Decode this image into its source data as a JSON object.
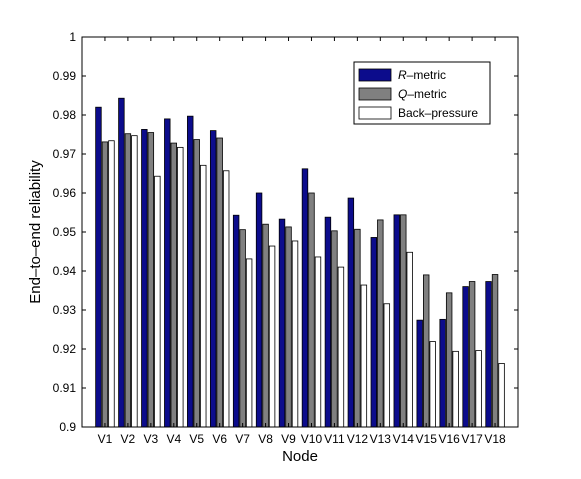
{
  "chart_data": {
    "type": "bar",
    "xlabel": "Node",
    "ylabel": "End–to–end reliability",
    "ylim": [
      0.9,
      1.0
    ],
    "yticks": [
      "0.9",
      "0.91",
      "0.92",
      "0.93",
      "0.94",
      "0.95",
      "0.96",
      "0.97",
      "0.98",
      "0.99",
      "1"
    ],
    "categories": [
      "V1",
      "V2",
      "V3",
      "V4",
      "V5",
      "V6",
      "V7",
      "V8",
      "V9",
      "V10",
      "V11",
      "V12",
      "V13",
      "V14",
      "V15",
      "V16",
      "V17",
      "V18"
    ],
    "legend_position": "top-right",
    "grid": false,
    "series": [
      {
        "name": "R–metric",
        "name_prefix": "R",
        "name_suffix": "–metric",
        "color": "#0c0c8c",
        "values": [
          0.982,
          0.9843,
          0.9763,
          0.979,
          0.9797,
          0.976,
          0.9543,
          0.96,
          0.9533,
          0.9662,
          0.9538,
          0.9587,
          0.9486,
          0.9544,
          0.9274,
          0.9276,
          0.936,
          0.9373
        ]
      },
      {
        "name": "Q–metric",
        "name_prefix": "Q",
        "name_suffix": "–metric",
        "color": "#808080",
        "values": [
          0.9731,
          0.9752,
          0.9755,
          0.9728,
          0.9737,
          0.9741,
          0.9506,
          0.952,
          0.9513,
          0.96,
          0.9503,
          0.9507,
          0.9531,
          0.9544,
          0.939,
          0.9344,
          0.9373,
          0.9391
        ]
      },
      {
        "name": "Back–pressure",
        "name_prefix": "",
        "name_suffix": "Back–pressure",
        "color": "#ffffff",
        "values": [
          0.9734,
          0.9747,
          0.9643,
          0.9717,
          0.9671,
          0.9657,
          0.9431,
          0.9464,
          0.9477,
          0.9436,
          0.941,
          0.9364,
          0.9316,
          0.9448,
          0.9219,
          0.9194,
          0.9196,
          0.9163
        ]
      }
    ]
  }
}
